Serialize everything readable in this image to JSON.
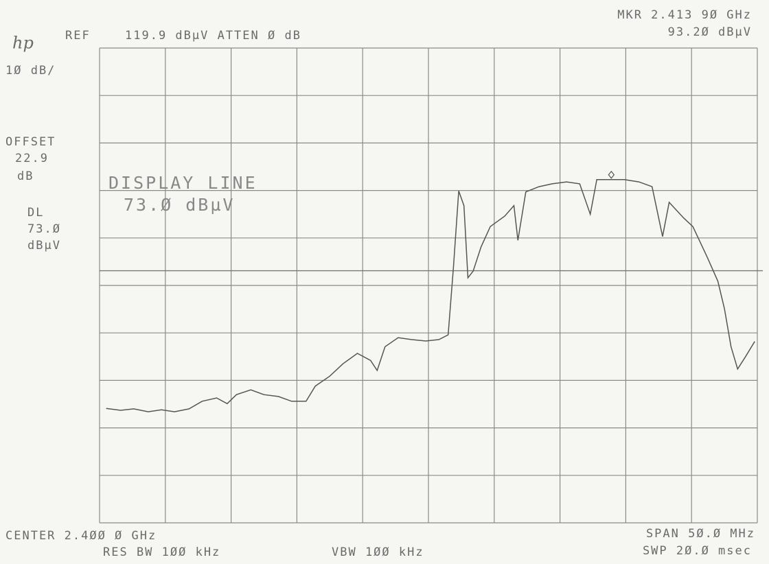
{
  "chart_data": {
    "type": "line",
    "logo": "hp",
    "ref_label": "REF",
    "ref_text": "119.9 dBµV ATTEN Ø dB",
    "marker_text": [
      "MKR 2.413 9Ø GHz",
      "93.2Ø dBµV"
    ],
    "scale_text": "1Ø dB/",
    "offset_text": [
      "OFFSET",
      "22.9",
      "dB"
    ],
    "dl_text": [
      "DL",
      "73.Ø",
      "dBµV"
    ],
    "display_line_text": [
      "DISPLAY LINE",
      "73.Ø dBµV"
    ],
    "footer": {
      "center": "CENTER 2.4ØØ Ø GHz",
      "res_bw": "RES BW 1ØØ kHz",
      "vbw": "VBW 1ØØ kHz",
      "span": "SPAN 5Ø.Ø MHz",
      "sweep": "SWP 2Ø.Ø msec"
    },
    "x": [
      2.3755,
      2.3766,
      2.3776,
      2.3787,
      2.3797,
      2.3807,
      2.3818,
      2.3828,
      2.3839,
      2.3847,
      2.3854,
      2.3865,
      2.3875,
      2.3886,
      2.3896,
      2.3907,
      2.3914,
      2.3925,
      2.3935,
      2.3946,
      2.3956,
      2.3961,
      2.3967,
      2.3977,
      2.3987,
      2.3998,
      2.4008,
      2.4015,
      2.4019,
      2.4023,
      2.4027,
      2.403,
      2.4034,
      2.404,
      2.4047,
      2.4058,
      2.4065,
      2.4068,
      2.4074,
      2.4084,
      2.4094,
      2.4105,
      2.4115,
      2.4123,
      2.4128,
      2.4139,
      2.4149,
      2.416,
      2.417,
      2.4178,
      2.4183,
      2.4194,
      2.4201,
      2.4212,
      2.422,
      2.4225,
      2.423,
      2.4235,
      2.4241,
      2.4248
    ],
    "values": [
      44.0,
      43.6,
      43.9,
      43.3,
      43.7,
      43.3,
      43.9,
      45.5,
      46.2,
      45.0,
      46.9,
      47.9,
      46.9,
      46.5,
      45.5,
      45.5,
      48.7,
      50.8,
      53.4,
      55.6,
      54.1,
      52.0,
      57.0,
      58.9,
      58.5,
      58.2,
      58.5,
      59.5,
      73.7,
      89.8,
      86.7,
      71.5,
      72.9,
      78.0,
      82.3,
      84.5,
      86.7,
      79.4,
      89.6,
      90.7,
      91.3,
      91.7,
      91.3,
      84.9,
      92.2,
      92.2,
      92.2,
      91.7,
      90.7,
      80.2,
      87.4,
      84.1,
      82.3,
      75.8,
      70.8,
      65.0,
      57.0,
      52.3,
      54.9,
      58.1
    ],
    "color": "#555555",
    "xlim": [
      2.375,
      2.425
    ],
    "ylim": [
      19.9,
      119.9
    ],
    "xticks": [
      2.375,
      2.38,
      2.385,
      2.39,
      2.395,
      2.4,
      2.405,
      2.41,
      2.415,
      2.42,
      2.425
    ],
    "yticks": [
      19.9,
      29.9,
      39.9,
      49.9,
      59.9,
      69.9,
      79.9,
      89.9,
      99.9,
      109.9,
      119.9
    ],
    "grid": true,
    "display_line": 73.0,
    "marker": {
      "x": 2.4139,
      "y": 93.2
    }
  }
}
